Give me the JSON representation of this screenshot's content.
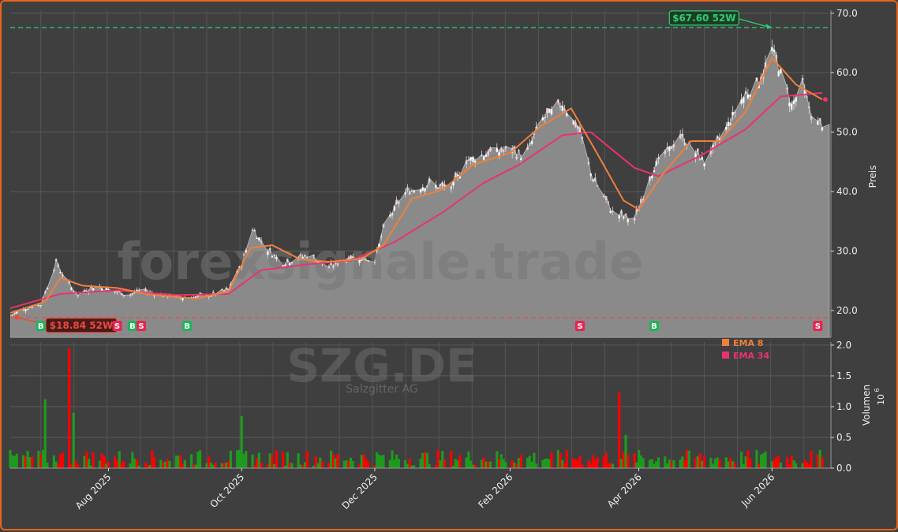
{
  "chart_data": {
    "type": "candlestick",
    "watermark": "forexsignale.trade",
    "ticker": "SZG.DE",
    "company": "Salzgitter AG",
    "price_axis": {
      "label": "Preis",
      "ticks": [
        20.0,
        30.0,
        40.0,
        50.0,
        60.0,
        70.0
      ],
      "tick_labels": [
        "20.0",
        "30.0",
        "40.0",
        "50.0",
        "60.0",
        "70.0"
      ],
      "ylim": [
        15.5,
        70.5
      ]
    },
    "volume_axis": {
      "label": "Volumen",
      "exponent": "10",
      "exponent_power": "6",
      "ticks": [
        0.0,
        0.5,
        1.0,
        1.5,
        2.0
      ],
      "tick_labels": [
        "0.0",
        "0.5",
        "1.0",
        "1.5",
        "2.0"
      ],
      "ylim": [
        0,
        2.05
      ]
    },
    "x_axis": {
      "tick_labels": [
        "Aug 2025",
        "Oct 2025",
        "Dec 2025",
        "Feb 2026",
        "Apr 2026",
        "Jun 2026"
      ],
      "tick_dates": [
        "2025-08-01",
        "2025-10-01",
        "2025-12-01",
        "2026-02-01",
        "2026-04-01",
        "2026-06-01"
      ],
      "xlim": [
        "2025-06-17",
        "2026-06-28"
      ]
    },
    "high_52w": {
      "value": 67.6,
      "label": "$67.60 52W",
      "date": "2026-06-01",
      "color": "#2ecc71"
    },
    "low_52w": {
      "value": 18.84,
      "label": "$18.84 52W",
      "date": "2025-06-17",
      "color": "#e74c3c"
    },
    "legend": [
      {
        "name": "EMA 8",
        "color": "#f07f3c"
      },
      {
        "name": "EMA 34",
        "color": "#e8336f"
      }
    ],
    "signals": [
      {
        "type": "B",
        "date": "2025-07-01"
      },
      {
        "type": "S",
        "date": "2025-08-05"
      },
      {
        "type": "B",
        "date": "2025-08-12"
      },
      {
        "type": "S",
        "date": "2025-08-16"
      },
      {
        "type": "B",
        "date": "2025-09-06"
      },
      {
        "type": "S",
        "date": "2026-03-05"
      },
      {
        "type": "B",
        "date": "2026-04-08"
      },
      {
        "type": "S",
        "date": "2026-06-22"
      }
    ],
    "price_path": [
      [
        "2025-06-17",
        19.2
      ],
      [
        "2025-06-24",
        20.4
      ],
      [
        "2025-07-01",
        21.0
      ],
      [
        "2025-07-08",
        28.2
      ],
      [
        "2025-07-12",
        25.2
      ],
      [
        "2025-07-18",
        22.5
      ],
      [
        "2025-07-25",
        24.0
      ],
      [
        "2025-08-01",
        23.5
      ],
      [
        "2025-08-10",
        22.6
      ],
      [
        "2025-08-16",
        23.4
      ],
      [
        "2025-08-25",
        22.6
      ],
      [
        "2025-09-05",
        22.2
      ],
      [
        "2025-09-15",
        22.4
      ],
      [
        "2025-09-25",
        23.5
      ],
      [
        "2025-10-01",
        27.8
      ],
      [
        "2025-10-06",
        33.8
      ],
      [
        "2025-10-12",
        30.5
      ],
      [
        "2025-10-20",
        28.0
      ],
      [
        "2025-11-01",
        29.4
      ],
      [
        "2025-11-10",
        27.2
      ],
      [
        "2025-11-20",
        29.0
      ],
      [
        "2025-12-01",
        28.5
      ],
      [
        "2025-12-06",
        34.8
      ],
      [
        "2025-12-15",
        39.8
      ],
      [
        "2025-12-25",
        41.2
      ],
      [
        "2026-01-05",
        40.5
      ],
      [
        "2026-01-12",
        45.2
      ],
      [
        "2026-01-22",
        46.5
      ],
      [
        "2026-02-01",
        47.0
      ],
      [
        "2026-02-08",
        45.8
      ],
      [
        "2026-02-15",
        52.0
      ],
      [
        "2026-02-25",
        54.8
      ],
      [
        "2026-03-05",
        50.0
      ],
      [
        "2026-03-10",
        43.0
      ],
      [
        "2026-03-20",
        36.5
      ],
      [
        "2026-03-30",
        35.2
      ],
      [
        "2026-04-08",
        44.2
      ],
      [
        "2026-04-20",
        49.2
      ],
      [
        "2026-05-01",
        45.0
      ],
      [
        "2026-05-10",
        50.0
      ],
      [
        "2026-05-18",
        55.5
      ],
      [
        "2026-05-28",
        59.5
      ],
      [
        "2026-06-01",
        64.0
      ],
      [
        "2026-06-05",
        60.0
      ],
      [
        "2026-06-10",
        54.5
      ],
      [
        "2026-06-15",
        58.0
      ],
      [
        "2026-06-20",
        51.5
      ],
      [
        "2026-06-28",
        51.3
      ]
    ],
    "ema8_path": [
      [
        "2025-06-17",
        19.6
      ],
      [
        "2025-07-03",
        21.5
      ],
      [
        "2025-07-10",
        25.5
      ],
      [
        "2025-07-20",
        24.2
      ],
      [
        "2025-08-05",
        23.8
      ],
      [
        "2025-08-20",
        22.7
      ],
      [
        "2025-09-10",
        22.0
      ],
      [
        "2025-09-25",
        23.2
      ],
      [
        "2025-10-05",
        30.5
      ],
      [
        "2025-10-15",
        31.0
      ],
      [
        "2025-10-28",
        28.6
      ],
      [
        "2025-11-10",
        28.2
      ],
      [
        "2025-11-25",
        28.7
      ],
      [
        "2025-12-05",
        31.0
      ],
      [
        "2025-12-18",
        38.8
      ],
      [
        "2026-01-01",
        40.3
      ],
      [
        "2026-01-15",
        44.5
      ],
      [
        "2026-02-01",
        46.5
      ],
      [
        "2026-02-15",
        51.0
      ],
      [
        "2026-03-01",
        54.0
      ],
      [
        "2026-03-12",
        47.0
      ],
      [
        "2026-03-25",
        38.5
      ],
      [
        "2026-04-01",
        37.0
      ],
      [
        "2026-04-12",
        43.0
      ],
      [
        "2026-04-25",
        48.5
      ],
      [
        "2026-05-08",
        48.5
      ],
      [
        "2026-05-20",
        53.5
      ],
      [
        "2026-06-01",
        62.5
      ],
      [
        "2026-06-12",
        58.0
      ],
      [
        "2026-06-24",
        55.5
      ]
    ],
    "ema34_path": [
      [
        "2025-06-17",
        20.4
      ],
      [
        "2025-07-10",
        22.8
      ],
      [
        "2025-08-05",
        23.4
      ],
      [
        "2025-09-01",
        22.6
      ],
      [
        "2025-09-25",
        22.8
      ],
      [
        "2025-10-10",
        26.8
      ],
      [
        "2025-11-01",
        27.8
      ],
      [
        "2025-11-20",
        28.4
      ],
      [
        "2025-12-10",
        31.5
      ],
      [
        "2026-01-01",
        36.5
      ],
      [
        "2026-01-20",
        41.5
      ],
      [
        "2026-02-05",
        44.5
      ],
      [
        "2026-02-25",
        49.5
      ],
      [
        "2026-03-10",
        50.0
      ],
      [
        "2026-03-30",
        44.0
      ],
      [
        "2026-04-10",
        42.6
      ],
      [
        "2026-04-30",
        46.2
      ],
      [
        "2026-05-20",
        50.5
      ],
      [
        "2026-06-05",
        56.0
      ],
      [
        "2026-06-24",
        56.6
      ]
    ],
    "volume_spikes": [
      {
        "date": "2025-07-03",
        "value": 1.12,
        "up": true
      },
      {
        "date": "2025-07-14",
        "value": 1.95,
        "up": false
      },
      {
        "date": "2025-07-16",
        "value": 0.9,
        "up": true
      },
      {
        "date": "2025-10-01",
        "value": 0.85,
        "up": true
      },
      {
        "date": "2026-03-23",
        "value": 1.23,
        "up": false
      },
      {
        "date": "2026-03-26",
        "value": 0.54,
        "up": true
      }
    ],
    "colors": {
      "up": "#1e9a1e",
      "down": "#ff0000",
      "ema8": "#f07f3c",
      "ema34": "#e8336f",
      "area": "#8a8a8a",
      "bg": "#3f3f3f"
    }
  }
}
